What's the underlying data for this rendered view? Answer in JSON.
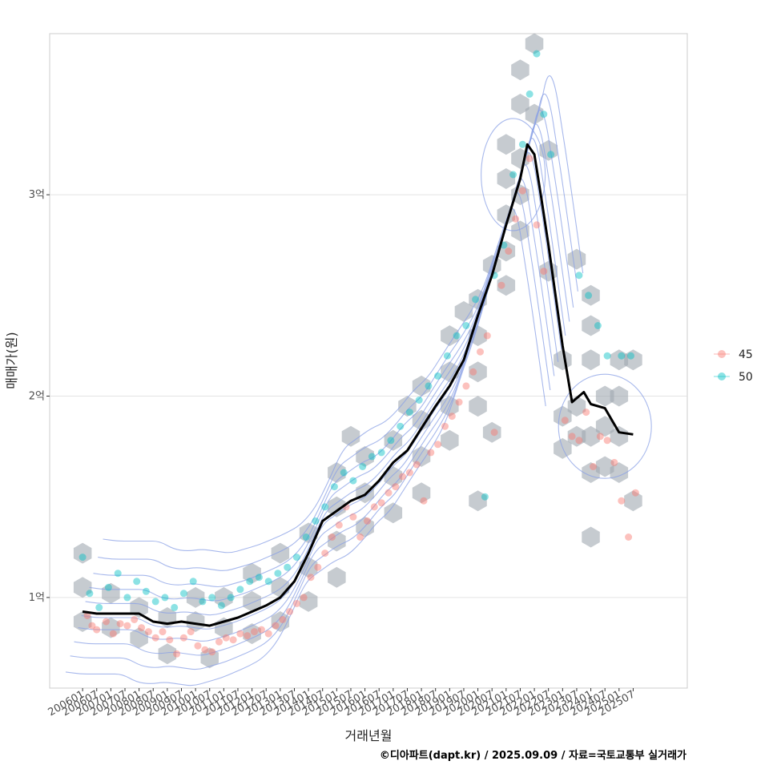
{
  "chart_data": {
    "type": "scatter",
    "title": "",
    "xlabel": "거래년월",
    "ylabel": "매매가(원)",
    "caption": "©디아파트(dapt.kr) / 2025.09.09 / 자료=국토교통부 실거래가",
    "x_tick_labels": [
      "200601",
      "200607",
      "200701",
      "200707",
      "200801",
      "200807",
      "200901",
      "200907",
      "201001",
      "201007",
      "201101",
      "201107",
      "201201",
      "201207",
      "201301",
      "201307",
      "201401",
      "201407",
      "201501",
      "201507",
      "201601",
      "201607",
      "201701",
      "201707",
      "201801",
      "201807",
      "201901",
      "201907",
      "202001",
      "202007",
      "202101",
      "202107",
      "202201",
      "202207",
      "202301",
      "202307",
      "202401",
      "202407",
      "202501",
      "202507"
    ],
    "xlim": [
      "2004-11",
      "2027-06"
    ],
    "ylim": [
      0.55,
      3.8
    ],
    "y_ticks": [
      1,
      2,
      3
    ],
    "y_tick_labels": [
      "1억",
      "2억",
      "3억"
    ],
    "y_unit": "억원",
    "grid": "horizontal",
    "legend": {
      "placement": "right",
      "entries": [
        {
          "label": "45",
          "color": "#f8766d"
        },
        {
          "label": "50",
          "color": "#00bfc4"
        }
      ]
    },
    "colors": {
      "hex": "#a0a8b0",
      "contour": "#8aa0e6",
      "trend": "#000000",
      "panel_border": "#cccccc",
      "grid": "#e3e3e3"
    },
    "trend_line": [
      [
        "2006-01",
        0.93
      ],
      [
        "2006-07",
        0.92
      ],
      [
        "2007-01",
        0.92
      ],
      [
        "2007-07",
        0.92
      ],
      [
        "2008-01",
        0.92
      ],
      [
        "2008-07",
        0.88
      ],
      [
        "2009-01",
        0.87
      ],
      [
        "2009-07",
        0.88
      ],
      [
        "2010-01",
        0.87
      ],
      [
        "2010-07",
        0.86
      ],
      [
        "2011-01",
        0.88
      ],
      [
        "2011-07",
        0.9
      ],
      [
        "2012-01",
        0.93
      ],
      [
        "2012-07",
        0.96
      ],
      [
        "2013-01",
        1.0
      ],
      [
        "2013-07",
        1.08
      ],
      [
        "2014-01",
        1.22
      ],
      [
        "2014-07",
        1.38
      ],
      [
        "2015-01",
        1.43
      ],
      [
        "2015-07",
        1.48
      ],
      [
        "2016-01",
        1.51
      ],
      [
        "2016-07",
        1.58
      ],
      [
        "2017-01",
        1.67
      ],
      [
        "2017-07",
        1.73
      ],
      [
        "2018-01",
        1.84
      ],
      [
        "2018-07",
        1.95
      ],
      [
        "2019-01",
        2.05
      ],
      [
        "2019-07",
        2.18
      ],
      [
        "2020-01",
        2.4
      ],
      [
        "2020-07",
        2.6
      ],
      [
        "2021-01",
        2.85
      ],
      [
        "2021-07",
        3.08
      ],
      [
        "2021-10",
        3.25
      ],
      [
        "2022-01",
        3.2
      ],
      [
        "2022-04",
        2.98
      ],
      [
        "2022-07",
        2.75
      ],
      [
        "2023-01",
        2.25
      ],
      [
        "2023-05",
        1.97
      ],
      [
        "2023-10",
        2.02
      ],
      [
        "2024-01",
        1.96
      ],
      [
        "2024-07",
        1.94
      ],
      [
        "2024-10",
        1.88
      ],
      [
        "2025-01",
        1.82
      ],
      [
        "2025-07",
        1.81
      ]
    ],
    "series": [
      {
        "name": "45",
        "points": [
          [
            "2006-03",
            0.91
          ],
          [
            "2006-05",
            0.86
          ],
          [
            "2006-07",
            0.84
          ],
          [
            "2006-11",
            0.88
          ],
          [
            "2007-02",
            0.82
          ],
          [
            "2007-05",
            0.87
          ],
          [
            "2007-08",
            0.86
          ],
          [
            "2007-11",
            0.89
          ],
          [
            "2008-02",
            0.85
          ],
          [
            "2008-05",
            0.83
          ],
          [
            "2008-08",
            0.8
          ],
          [
            "2008-11",
            0.83
          ],
          [
            "2009-02",
            0.79
          ],
          [
            "2009-05",
            0.72
          ],
          [
            "2009-08",
            0.8
          ],
          [
            "2009-11",
            0.83
          ],
          [
            "2010-02",
            0.76
          ],
          [
            "2010-05",
            0.74
          ],
          [
            "2010-08",
            0.73
          ],
          [
            "2010-11",
            0.78
          ],
          [
            "2011-02",
            0.8
          ],
          [
            "2011-05",
            0.79
          ],
          [
            "2011-08",
            0.82
          ],
          [
            "2011-11",
            0.81
          ],
          [
            "2012-02",
            0.83
          ],
          [
            "2012-05",
            0.84
          ],
          [
            "2012-08",
            0.82
          ],
          [
            "2012-11",
            0.86
          ],
          [
            "2013-02",
            0.89
          ],
          [
            "2013-05",
            0.93
          ],
          [
            "2013-08",
            0.97
          ],
          [
            "2013-11",
            1.0
          ],
          [
            "2014-02",
            1.1
          ],
          [
            "2014-05",
            1.15
          ],
          [
            "2014-08",
            1.22
          ],
          [
            "2014-11",
            1.3
          ],
          [
            "2015-02",
            1.36
          ],
          [
            "2015-05",
            1.45
          ],
          [
            "2015-08",
            1.4
          ],
          [
            "2015-11",
            1.3
          ],
          [
            "2016-02",
            1.38
          ],
          [
            "2016-05",
            1.45
          ],
          [
            "2016-08",
            1.47
          ],
          [
            "2016-11",
            1.52
          ],
          [
            "2017-02",
            1.55
          ],
          [
            "2017-05",
            1.6
          ],
          [
            "2017-08",
            1.62
          ],
          [
            "2017-11",
            1.66
          ],
          [
            "2018-02",
            1.48
          ],
          [
            "2018-05",
            1.72
          ],
          [
            "2018-08",
            1.76
          ],
          [
            "2018-11",
            1.85
          ],
          [
            "2019-02",
            1.9
          ],
          [
            "2019-05",
            1.97
          ],
          [
            "2019-08",
            2.05
          ],
          [
            "2019-11",
            2.12
          ],
          [
            "2020-02",
            2.22
          ],
          [
            "2020-05",
            2.3
          ],
          [
            "2020-08",
            1.82
          ],
          [
            "2020-11",
            2.55
          ],
          [
            "2021-02",
            2.72
          ],
          [
            "2021-05",
            2.88
          ],
          [
            "2021-08",
            3.02
          ],
          [
            "2021-11",
            3.18
          ],
          [
            "2022-02",
            2.85
          ],
          [
            "2022-05",
            2.62
          ],
          [
            "2023-02",
            1.88
          ],
          [
            "2023-05",
            1.8
          ],
          [
            "2023-08",
            1.78
          ],
          [
            "2023-11",
            1.92
          ],
          [
            "2024-02",
            1.65
          ],
          [
            "2024-05",
            1.8
          ],
          [
            "2024-08",
            1.78
          ],
          [
            "2024-11",
            1.67
          ],
          [
            "2025-02",
            1.48
          ],
          [
            "2025-05",
            1.3
          ],
          [
            "2025-08",
            1.52
          ]
        ]
      },
      {
        "name": "50",
        "points": [
          [
            "2006-01",
            1.2
          ],
          [
            "2006-04",
            1.02
          ],
          [
            "2006-08",
            0.95
          ],
          [
            "2006-12",
            1.05
          ],
          [
            "2007-04",
            1.12
          ],
          [
            "2007-08",
            1.0
          ],
          [
            "2007-12",
            1.08
          ],
          [
            "2008-04",
            1.03
          ],
          [
            "2008-08",
            0.98
          ],
          [
            "2008-12",
            1.0
          ],
          [
            "2009-04",
            0.95
          ],
          [
            "2009-08",
            1.02
          ],
          [
            "2009-12",
            1.08
          ],
          [
            "2010-04",
            0.98
          ],
          [
            "2010-08",
            1.0
          ],
          [
            "2010-12",
            0.96
          ],
          [
            "2011-04",
            1.0
          ],
          [
            "2011-08",
            1.04
          ],
          [
            "2011-12",
            1.08
          ],
          [
            "2012-04",
            1.1
          ],
          [
            "2012-08",
            1.08
          ],
          [
            "2012-12",
            1.12
          ],
          [
            "2013-04",
            1.15
          ],
          [
            "2013-08",
            1.2
          ],
          [
            "2013-12",
            1.3
          ],
          [
            "2014-04",
            1.38
          ],
          [
            "2014-08",
            1.45
          ],
          [
            "2014-12",
            1.55
          ],
          [
            "2015-04",
            1.62
          ],
          [
            "2015-08",
            1.58
          ],
          [
            "2015-12",
            1.65
          ],
          [
            "2016-04",
            1.7
          ],
          [
            "2016-08",
            1.72
          ],
          [
            "2016-12",
            1.78
          ],
          [
            "2017-04",
            1.85
          ],
          [
            "2017-08",
            1.92
          ],
          [
            "2017-12",
            1.98
          ],
          [
            "2018-04",
            2.05
          ],
          [
            "2018-08",
            2.1
          ],
          [
            "2018-12",
            2.2
          ],
          [
            "2019-04",
            2.3
          ],
          [
            "2019-08",
            2.35
          ],
          [
            "2019-12",
            2.48
          ],
          [
            "2020-04",
            1.5
          ],
          [
            "2020-08",
            2.6
          ],
          [
            "2020-12",
            2.75
          ],
          [
            "2021-04",
            3.1
          ],
          [
            "2021-08",
            3.25
          ],
          [
            "2021-11",
            3.5
          ],
          [
            "2022-02",
            3.7
          ],
          [
            "2022-05",
            3.4
          ],
          [
            "2022-08",
            3.2
          ],
          [
            "2023-08",
            2.6
          ],
          [
            "2023-12",
            2.5
          ],
          [
            "2024-04",
            2.35
          ],
          [
            "2024-08",
            2.2
          ],
          [
            "2025-02",
            2.2
          ],
          [
            "2025-06",
            2.2
          ]
        ]
      }
    ],
    "hex_bins": [
      [
        "2006-01",
        1.22
      ],
      [
        "2006-01",
        0.88
      ],
      [
        "2006-01",
        1.05
      ],
      [
        "2007-01",
        0.85
      ],
      [
        "2007-01",
        1.02
      ],
      [
        "2008-01",
        0.95
      ],
      [
        "2008-01",
        0.8
      ],
      [
        "2009-01",
        0.9
      ],
      [
        "2009-01",
        0.72
      ],
      [
        "2010-01",
        0.88
      ],
      [
        "2010-01",
        1.0
      ],
      [
        "2010-07",
        0.7
      ],
      [
        "2011-01",
        0.85
      ],
      [
        "2011-01",
        1.0
      ],
      [
        "2012-01",
        0.82
      ],
      [
        "2012-01",
        0.98
      ],
      [
        "2012-01",
        1.12
      ],
      [
        "2013-01",
        0.88
      ],
      [
        "2013-01",
        1.05
      ],
      [
        "2013-01",
        1.22
      ],
      [
        "2014-01",
        0.98
      ],
      [
        "2014-01",
        1.15
      ],
      [
        "2014-01",
        1.32
      ],
      [
        "2015-01",
        1.1
      ],
      [
        "2015-01",
        1.28
      ],
      [
        "2015-01",
        1.45
      ],
      [
        "2015-01",
        1.62
      ],
      [
        "2015-07",
        1.8
      ],
      [
        "2016-01",
        1.35
      ],
      [
        "2016-01",
        1.52
      ],
      [
        "2016-01",
        1.7
      ],
      [
        "2017-01",
        1.42
      ],
      [
        "2017-01",
        1.6
      ],
      [
        "2017-01",
        1.78
      ],
      [
        "2017-07",
        1.95
      ],
      [
        "2018-01",
        1.52
      ],
      [
        "2018-01",
        1.7
      ],
      [
        "2018-01",
        1.88
      ],
      [
        "2018-01",
        2.05
      ],
      [
        "2019-01",
        1.78
      ],
      [
        "2019-01",
        1.95
      ],
      [
        "2019-01",
        2.12
      ],
      [
        "2019-01",
        2.3
      ],
      [
        "2019-07",
        2.42
      ],
      [
        "2020-01",
        1.95
      ],
      [
        "2020-01",
        2.12
      ],
      [
        "2020-01",
        2.3
      ],
      [
        "2020-01",
        2.48
      ],
      [
        "2020-01",
        1.48
      ],
      [
        "2020-07",
        1.82
      ],
      [
        "2020-07",
        2.65
      ],
      [
        "2021-01",
        2.55
      ],
      [
        "2021-01",
        2.72
      ],
      [
        "2021-01",
        2.9
      ],
      [
        "2021-01",
        3.08
      ],
      [
        "2021-01",
        3.25
      ],
      [
        "2021-07",
        2.82
      ],
      [
        "2021-07",
        3.0
      ],
      [
        "2021-07",
        3.18
      ],
      [
        "2021-07",
        3.45
      ],
      [
        "2021-07",
        3.62
      ],
      [
        "2022-01",
        3.75
      ],
      [
        "2022-01",
        3.4
      ],
      [
        "2022-07",
        3.22
      ],
      [
        "2022-07",
        2.62
      ],
      [
        "2023-01",
        2.18
      ],
      [
        "2023-01",
        1.9
      ],
      [
        "2023-01",
        1.74
      ],
      [
        "2023-07",
        1.8
      ],
      [
        "2023-07",
        1.95
      ],
      [
        "2023-07",
        2.68
      ],
      [
        "2024-01",
        1.62
      ],
      [
        "2024-01",
        1.8
      ],
      [
        "2024-01",
        1.3
      ],
      [
        "2024-01",
        2.18
      ],
      [
        "2024-01",
        2.35
      ],
      [
        "2024-01",
        2.5
      ],
      [
        "2024-07",
        1.65
      ],
      [
        "2024-07",
        1.85
      ],
      [
        "2024-07",
        2.0
      ],
      [
        "2025-01",
        1.62
      ],
      [
        "2025-01",
        1.8
      ],
      [
        "2025-01",
        2.0
      ],
      [
        "2025-01",
        2.18
      ],
      [
        "2025-07",
        1.48
      ],
      [
        "2025-07",
        2.18
      ]
    ]
  }
}
